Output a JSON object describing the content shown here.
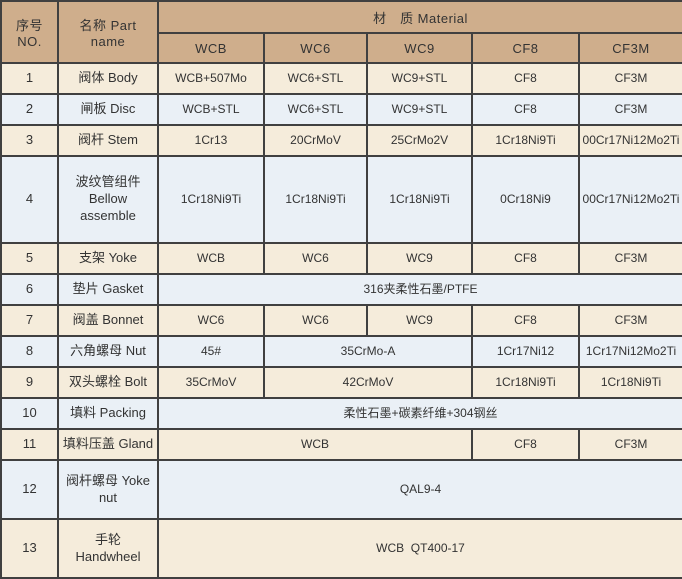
{
  "colors": {
    "header_bg": "#cfae8c",
    "row_cream_bg": "#f5ecdb",
    "row_blue_bg": "#eaf0f6",
    "border": "#404040",
    "text": "#333333"
  },
  "table": {
    "corner": {
      "no_label": "序号NO.",
      "name_label": "名称 Part name"
    },
    "material_header": "材　质 Material",
    "material_columns": [
      "WCB",
      "WC6",
      "WC9",
      "CF8",
      "CF3M"
    ],
    "rows": [
      {
        "no": "1",
        "name": "阀体 Body",
        "cells": [
          {
            "text": "WCB+507Mo",
            "span": 1
          },
          {
            "text": "WC6+STL",
            "span": 1
          },
          {
            "text": "WC9+STL",
            "span": 1
          },
          {
            "text": "CF8",
            "span": 1
          },
          {
            "text": "CF3M",
            "span": 1
          }
        ]
      },
      {
        "no": "2",
        "name": "闸板 Disc",
        "cells": [
          {
            "text": "WCB+STL",
            "span": 1
          },
          {
            "text": "WC6+STL",
            "span": 1
          },
          {
            "text": "WC9+STL",
            "span": 1
          },
          {
            "text": "CF8",
            "span": 1
          },
          {
            "text": "CF3M",
            "span": 1
          }
        ]
      },
      {
        "no": "3",
        "name": "阀杆 Stem",
        "cells": [
          {
            "text": "1Cr13",
            "span": 1
          },
          {
            "text": "20CrMoV",
            "span": 1
          },
          {
            "text": "25CrMo2V",
            "span": 1
          },
          {
            "text": "1Cr18Ni9Ti",
            "span": 1
          },
          {
            "text": "00Cr17Ni12Mo2Ti",
            "span": 1
          }
        ]
      },
      {
        "no": "4",
        "name": "波纹管组件\nBellow assemble",
        "cells": [
          {
            "text": "1Cr18Ni9Ti",
            "span": 1
          },
          {
            "text": "1Cr18Ni9Ti",
            "span": 1
          },
          {
            "text": "1Cr18Ni9Ti",
            "span": 1
          },
          {
            "text": "0Cr18Ni9",
            "span": 1
          },
          {
            "text": "00Cr17Ni12Mo2Ti",
            "span": 1
          }
        ]
      },
      {
        "no": "5",
        "name": "支架 Yoke",
        "cells": [
          {
            "text": "WCB",
            "span": 1
          },
          {
            "text": "WC6",
            "span": 1
          },
          {
            "text": "WC9",
            "span": 1
          },
          {
            "text": "CF8",
            "span": 1
          },
          {
            "text": "CF3M",
            "span": 1
          }
        ]
      },
      {
        "no": "6",
        "name": "垫片 Gasket",
        "cells": [
          {
            "text": "316夹柔性石墨/PTFE",
            "span": 5
          }
        ]
      },
      {
        "no": "7",
        "name": "阀盖 Bonnet",
        "cells": [
          {
            "text": "WC6",
            "span": 1
          },
          {
            "text": "WC6",
            "span": 1
          },
          {
            "text": "WC9",
            "span": 1
          },
          {
            "text": "CF8",
            "span": 1
          },
          {
            "text": "CF3M",
            "span": 1
          }
        ]
      },
      {
        "no": "8",
        "name": "六角螺母 Nut",
        "cells": [
          {
            "text": "45#",
            "span": 1
          },
          {
            "text": "35CrMo-A",
            "span": 2
          },
          {
            "text": "1Cr17Ni12",
            "span": 1
          },
          {
            "text": "1Cr17Ni12Mo2Ti",
            "span": 1
          }
        ]
      },
      {
        "no": "9",
        "name": "双头螺栓 Bolt",
        "cells": [
          {
            "text": "35CrMoV",
            "span": 1
          },
          {
            "text": "42CrMoV",
            "span": 2
          },
          {
            "text": "1Cr18Ni9Ti",
            "span": 1
          },
          {
            "text": "1Cr18Ni9Ti",
            "span": 1
          }
        ]
      },
      {
        "no": "10",
        "name": "填料 Packing",
        "cells": [
          {
            "text": "柔性石墨+碳素纤维+304钢丝",
            "span": 5
          }
        ]
      },
      {
        "no": "11",
        "name": "填料压盖 Gland",
        "cells": [
          {
            "text": "WCB",
            "span": 3
          },
          {
            "text": "CF8",
            "span": 1
          },
          {
            "text": "CF3M",
            "span": 1
          }
        ]
      },
      {
        "no": "12",
        "name": "阀杆螺母 Yoke nut",
        "cells": [
          {
            "text": "QAL9-4",
            "span": 5
          }
        ]
      },
      {
        "no": "13",
        "name": "手轮 Handwheel",
        "cells": [
          {
            "text": "WCB  QT400-17",
            "span": 5
          }
        ]
      }
    ]
  }
}
